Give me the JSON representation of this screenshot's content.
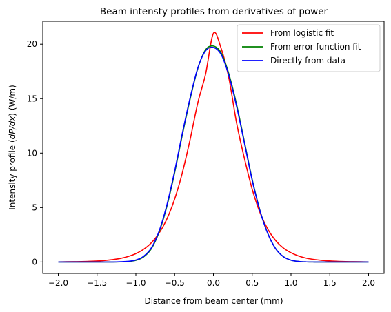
{
  "chart_data": {
    "type": "line",
    "title": "Beam intensty profiles from derivatives of power",
    "xlabel": "Distance from beam center (mm)",
    "ylabel_parts": {
      "before": "Intensity profile (",
      "math": "dP/dx",
      "after": ") (W/m)"
    },
    "xlim": [
      -2.2,
      2.2
    ],
    "ylim": [
      -1.05,
      22.1
    ],
    "xticks": [
      -2.0,
      -1.5,
      -1.0,
      -0.5,
      0.0,
      0.5,
      1.0,
      1.5,
      2.0
    ],
    "xtick_labels": [
      "−2.0",
      "−1.5",
      "−1.0",
      "−0.5",
      "0.0",
      "0.5",
      "1.0",
      "1.5",
      "2.0"
    ],
    "yticks": [
      0,
      5,
      10,
      15,
      20
    ],
    "ytick_labels": [
      "0",
      "5",
      "10",
      "15",
      "20"
    ],
    "grid": false,
    "legend_position": "top-right",
    "x": [
      -2.0,
      -1.9,
      -1.8,
      -1.7,
      -1.6,
      -1.5,
      -1.4,
      -1.3,
      -1.2,
      -1.1,
      -1.0,
      -0.9,
      -0.8,
      -0.7,
      -0.6,
      -0.5,
      -0.4,
      -0.3,
      -0.2,
      -0.1,
      0.0,
      0.1,
      0.2,
      0.3,
      0.4,
      0.5,
      0.6,
      0.7,
      0.8,
      0.9,
      1.0,
      1.1,
      1.2,
      1.3,
      1.4,
      1.5,
      1.6,
      1.7,
      1.8,
      1.9,
      2.0
    ],
    "series": [
      {
        "name": "From logistic fit",
        "color": "#ff0000",
        "values": [
          0.01,
          0.02,
          0.03,
          0.04,
          0.06,
          0.09,
          0.14,
          0.22,
          0.33,
          0.51,
          0.77,
          1.17,
          1.77,
          2.66,
          3.96,
          5.78,
          8.22,
          11.27,
          14.66,
          17.29,
          21.0,
          19.6,
          16.85,
          12.72,
          9.5,
          6.68,
          4.54,
          3.03,
          1.99,
          1.3,
          0.85,
          0.55,
          0.35,
          0.23,
          0.15,
          0.1,
          0.06,
          0.04,
          0.03,
          0.02,
          0.01
        ]
      },
      {
        "name": "From error function fit",
        "color": "#008000",
        "values": [
          0.0,
          0.0,
          0.0,
          0.0,
          0.0,
          0.0,
          0.0,
          0.0,
          0.01,
          0.04,
          0.15,
          0.47,
          1.22,
          2.76,
          5.12,
          8.2,
          11.7,
          14.97,
          17.8,
          19.5,
          19.83,
          19.2,
          17.25,
          14.42,
          11.02,
          7.58,
          4.74,
          2.64,
          1.25,
          0.5,
          0.17,
          0.05,
          0.01,
          0.0,
          0.0,
          0.0,
          0.0,
          0.0,
          0.0,
          0.0,
          0.0
        ]
      },
      {
        "name": "Directly from data",
        "color": "#0000ff",
        "values": [
          0.0,
          0.0,
          0.0,
          0.0,
          0.0,
          0.0,
          0.0,
          0.0,
          0.02,
          0.06,
          0.18,
          0.52,
          1.3,
          2.85,
          5.25,
          8.35,
          11.85,
          15.1,
          17.85,
          19.4,
          19.7,
          19.05,
          17.1,
          14.25,
          10.9,
          7.5,
          4.7,
          2.62,
          1.25,
          0.5,
          0.17,
          0.05,
          0.01,
          0.0,
          0.0,
          0.0,
          0.0,
          0.0,
          0.0,
          0.0,
          0.0
        ]
      }
    ]
  }
}
